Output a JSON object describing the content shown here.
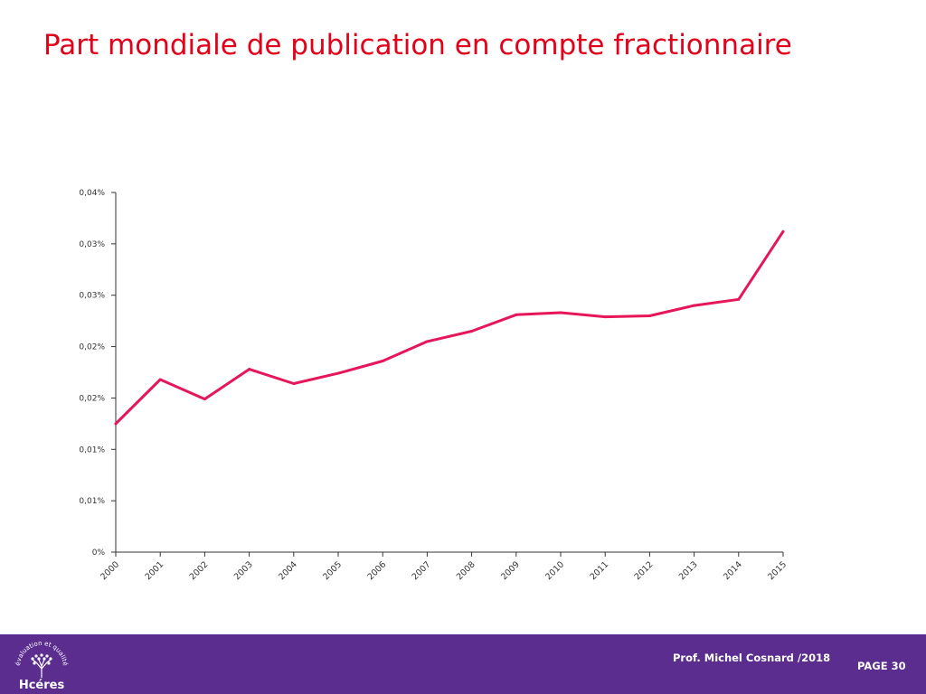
{
  "slide": {
    "title": "Part mondiale de publication en compte fractionnaire"
  },
  "footer": {
    "author": "Prof. Michel Cosnard /2018",
    "page": "PAGE 30",
    "logo_name": "Hcéres",
    "logo_tagline": "évaluation et qualité",
    "background_color": "#5b2d8f"
  },
  "chart_data": {
    "type": "line",
    "title": "",
    "xlabel": "",
    "ylabel": "",
    "x": [
      "2000",
      "2001",
      "2002",
      "2003",
      "2004",
      "2005",
      "2006",
      "2007",
      "2008",
      "2009",
      "2010",
      "2011",
      "2012",
      "2013",
      "2014",
      "2015"
    ],
    "series": [
      {
        "values": [
          0.0125,
          0.0168,
          0.0149,
          0.0178,
          0.0164,
          0.0174,
          0.0186,
          0.0205,
          0.0215,
          0.0231,
          0.0233,
          0.0229,
          0.023,
          0.024,
          0.0246,
          0.0312
        ],
        "color": "#e5175a"
      }
    ],
    "ylim": [
      0,
      0.035
    ],
    "yticks": [
      0,
      0.005,
      0.01,
      0.015,
      0.02,
      0.025,
      0.03,
      0.035
    ],
    "ytick_labels": [
      "0%",
      "0,01%",
      "0,01%",
      "0,02%",
      "0,02%",
      "0,03%",
      "0,03%",
      "0,04%"
    ],
    "grid": false,
    "legend": "none"
  }
}
